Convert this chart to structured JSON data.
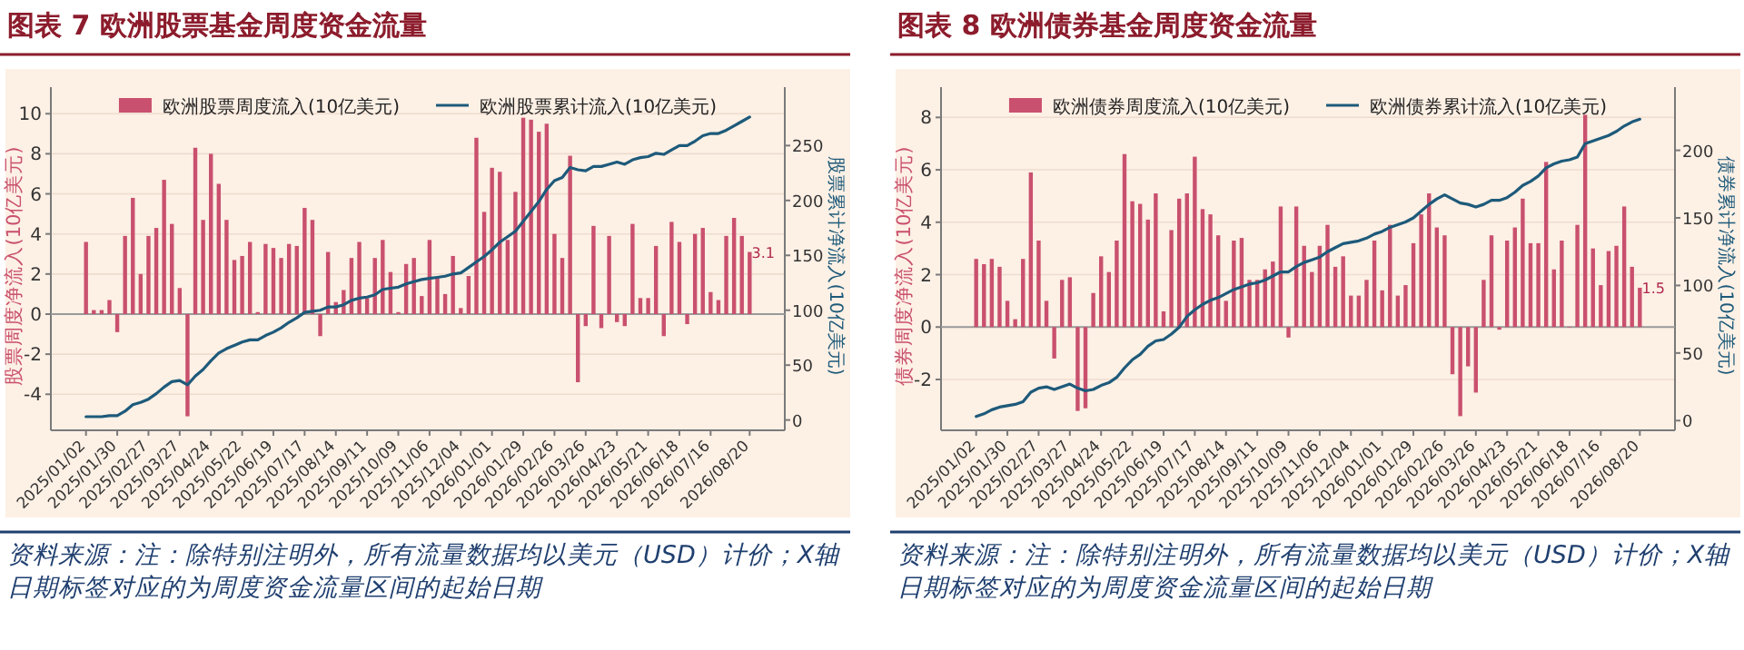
{
  "chart_data": [
    {
      "type": "bar",
      "title": "图表 7 欧洲股票基金周度资金流量",
      "ylabel": "股票周度净流入(10亿美元)",
      "y2label": "股票累计净流入(10亿美元)",
      "annotations": [
        "资料来源：注：除特别注明外，所有流量数据均以美元（USD）计价；X轴日期标签对应的为周度资金流量区间的起始日期"
      ],
      "categories": [
        "2025/01/02",
        null,
        null,
        null,
        "2025/01/30",
        null,
        null,
        null,
        "2025/02/27",
        null,
        null,
        null,
        "2025/03/27",
        null,
        null,
        null,
        "2025/04/24",
        null,
        null,
        null,
        "2025/05/22",
        null,
        null,
        null,
        "2025/06/19",
        null,
        null,
        null,
        "2025/07/17",
        null,
        null,
        null,
        "2025/08/14",
        null,
        null,
        null,
        "2025/09/11",
        null,
        null,
        null,
        "2025/10/09",
        null,
        null,
        null,
        "2025/11/06",
        null,
        null,
        null,
        "2025/12/04",
        null,
        null,
        null,
        "2026/01/01",
        null,
        null,
        null,
        "2026/01/29",
        null,
        null,
        null,
        "2026/02/26",
        null,
        null,
        null,
        "2026/03/26",
        null,
        null,
        null,
        "2026/04/23",
        null,
        null,
        null,
        "2026/05/21",
        null,
        null,
        null,
        "2026/06/18",
        null,
        null,
        null,
        "2026/07/16",
        null,
        null,
        null,
        null,
        "2026/08/20"
      ],
      "series": [
        {
          "type": "bar",
          "name": "欧洲股票周度流入(10亿美元)",
          "color": "#c9506e",
          "values": [
            3.6,
            0.2,
            0.2,
            0.7,
            -0.9,
            3.9,
            5.8,
            2.0,
            3.9,
            4.3,
            6.7,
            4.5,
            1.3,
            -5.1,
            8.3,
            4.7,
            8.0,
            6.5,
            4.7,
            2.7,
            2.9,
            3.6,
            0.1,
            3.5,
            3.3,
            2.8,
            3.5,
            3.4,
            5.3,
            4.7,
            -1.1,
            3.1,
            0.6,
            1.2,
            2.8,
            3.6,
            0.8,
            2.8,
            3.7,
            2.1,
            0.1,
            2.5,
            2.8,
            0.9,
            3.7,
            1.8,
            1.0,
            2.9,
            0.3,
            1.9,
            8.8,
            5.1,
            7.3,
            7.1,
            3.7,
            6.1,
            9.8,
            9.7,
            9.1,
            9.5,
            4.0,
            2.8,
            7.9,
            -3.4,
            -0.6,
            4.4,
            -0.7,
            3.9,
            -0.4,
            -0.6,
            4.5,
            0.8,
            0.8,
            3.4,
            -1.1,
            4.6,
            3.6,
            -0.5,
            4.0,
            4.3,
            1.1,
            0.7,
            3.9,
            4.8,
            3.9,
            3.1
          ],
          "value_labels": [
            null,
            null,
            null,
            null,
            null,
            null,
            null,
            null,
            null,
            null,
            null,
            null,
            null,
            null,
            null,
            null,
            null,
            null,
            null,
            null,
            null,
            null,
            null,
            null,
            null,
            null,
            null,
            null,
            null,
            null,
            null,
            null,
            null,
            null,
            null,
            null,
            null,
            null,
            null,
            null,
            null,
            null,
            null,
            null,
            null,
            null,
            null,
            null,
            null,
            null,
            null,
            null,
            null,
            null,
            null,
            null,
            null,
            null,
            null,
            null,
            null,
            null,
            null,
            null,
            null,
            null,
            null,
            null,
            null,
            null,
            null,
            null,
            null,
            null,
            null,
            null,
            null,
            null,
            null,
            null,
            null,
            null,
            null,
            null,
            null,
            "3.1"
          ]
        },
        {
          "type": "line",
          "axis": "y2",
          "name": "欧洲股票累计流入(10亿美元)",
          "color": "#1d5a7a",
          "values": [
            3,
            3,
            3,
            4,
            4,
            8,
            14,
            16,
            19,
            24,
            30,
            35,
            36,
            32,
            40,
            46,
            54,
            61,
            65,
            68,
            71,
            73,
            73,
            77,
            80,
            84,
            89,
            93,
            98,
            99,
            100,
            103,
            103,
            105,
            109,
            111,
            112,
            114,
            119,
            120,
            121,
            124,
            126,
            128,
            129,
            130,
            131,
            133,
            134,
            139,
            144,
            149,
            155,
            162,
            167,
            172,
            181,
            190,
            199,
            210,
            218,
            221,
            230,
            228,
            227,
            231,
            231,
            233,
            235,
            233,
            237,
            239,
            240,
            243,
            242,
            246,
            250,
            250,
            254,
            259,
            261,
            261,
            264,
            268,
            272,
            276
          ]
        }
      ],
      "ylim": [
        -5.8,
        10.6
      ],
      "yticks": [
        -4,
        -2,
        0,
        2,
        4,
        6,
        8,
        10
      ],
      "y2lim": [
        -9.4,
        290
      ],
      "y2ticks": [
        0,
        50,
        100,
        150,
        200,
        250
      ],
      "grid": "y",
      "legend": "top",
      "line_style": "solid"
    },
    {
      "type": "bar",
      "title": "图表 8 欧洲债券基金周度资金流量",
      "ylabel": "债券周度净流入(10亿美元)",
      "y2label": "债券累计净流入(10亿美元)",
      "annotations": [
        "资料来源：注：除特别注明外，所有流量数据均以美元（USD）计价；X轴日期标签对应的为周度资金流量区间的起始日期"
      ],
      "categories": [
        "2025/01/02",
        null,
        null,
        null,
        "2025/01/30",
        null,
        null,
        null,
        "2025/02/27",
        null,
        null,
        null,
        "2025/03/27",
        null,
        null,
        null,
        "2025/04/24",
        null,
        null,
        null,
        "2025/05/22",
        null,
        null,
        null,
        "2025/06/19",
        null,
        null,
        null,
        "2025/07/17",
        null,
        null,
        null,
        "2025/08/14",
        null,
        null,
        null,
        "2025/09/11",
        null,
        null,
        null,
        "2025/10/09",
        null,
        null,
        null,
        "2025/11/06",
        null,
        null,
        null,
        "2025/12/04",
        null,
        null,
        null,
        "2026/01/01",
        null,
        null,
        null,
        "2026/01/29",
        null,
        null,
        null,
        "2026/02/26",
        null,
        null,
        null,
        "2026/03/26",
        null,
        null,
        null,
        "2026/04/23",
        null,
        null,
        null,
        "2026/05/21",
        null,
        null,
        null,
        "2026/06/18",
        null,
        null,
        null,
        "2026/07/16",
        null,
        null,
        null,
        null,
        "2026/08/20"
      ],
      "series": [
        {
          "type": "bar",
          "name": "欧洲债券周度流入(10亿美元)",
          "color": "#c9506e",
          "values": [
            2.6,
            2.4,
            2.6,
            2.3,
            1.0,
            0.3,
            2.6,
            5.9,
            3.3,
            1.0,
            -1.2,
            1.8,
            1.9,
            -3.2,
            -3.1,
            1.3,
            2.7,
            2.1,
            3.3,
            6.6,
            4.8,
            4.7,
            4.1,
            5.1,
            0.6,
            3.7,
            4.9,
            5.1,
            6.5,
            4.5,
            4.3,
            3.5,
            1.0,
            3.3,
            3.4,
            1.8,
            1.8,
            2.2,
            2.5,
            4.6,
            -0.4,
            4.6,
            3.1,
            2.1,
            3.1,
            3.9,
            2.3,
            2.7,
            1.2,
            1.2,
            1.8,
            3.3,
            1.4,
            3.9,
            1.2,
            1.6,
            3.2,
            4.3,
            5.1,
            3.8,
            3.5,
            -1.8,
            -3.4,
            -1.5,
            -2.5,
            1.8,
            3.5,
            -0.1,
            3.3,
            3.8,
            4.9,
            3.2,
            3.2,
            6.3,
            2.2,
            3.3,
            0,
            3.9,
            8.1,
            3.0,
            1.6,
            2.9,
            3.1,
            4.6,
            2.3,
            1.5
          ],
          "value_labels": [
            null,
            null,
            null,
            null,
            null,
            null,
            null,
            null,
            null,
            null,
            null,
            null,
            null,
            null,
            null,
            null,
            null,
            null,
            null,
            null,
            null,
            null,
            null,
            null,
            null,
            null,
            null,
            null,
            null,
            null,
            null,
            null,
            null,
            null,
            null,
            null,
            null,
            null,
            null,
            null,
            null,
            null,
            null,
            null,
            null,
            null,
            null,
            null,
            null,
            null,
            null,
            null,
            null,
            null,
            null,
            null,
            null,
            null,
            null,
            null,
            null,
            null,
            null,
            null,
            null,
            null,
            null,
            null,
            null,
            null,
            null,
            null,
            null,
            null,
            null,
            null,
            null,
            null,
            null,
            null,
            null,
            null,
            null,
            null,
            null,
            "1.5"
          ]
        },
        {
          "type": "line",
          "axis": "y2",
          "name": "欧洲债券累计流入(10亿美元)",
          "color": "#1d5a7a",
          "values": [
            3,
            5,
            8,
            10,
            11,
            12,
            14,
            21,
            24,
            25,
            23,
            25,
            27,
            24,
            22,
            23,
            26,
            28,
            32,
            39,
            45,
            49,
            55,
            59,
            60,
            64,
            69,
            77,
            82,
            86,
            89,
            91,
            94,
            97,
            99,
            101,
            102,
            104,
            107,
            110,
            110,
            114,
            117,
            119,
            121,
            125,
            128,
            131,
            132,
            133,
            135,
            138,
            140,
            143,
            145,
            147,
            150,
            155,
            160,
            164,
            167,
            164,
            161,
            160,
            158,
            160,
            163,
            163,
            165,
            169,
            174,
            177,
            181,
            187,
            190,
            192,
            193,
            195,
            205,
            207,
            209,
            211,
            214,
            218,
            221,
            223
          ]
        }
      ],
      "ylim": [
        -3.94,
        8.6
      ],
      "yticks": [
        -2,
        0,
        2,
        4,
        6,
        8
      ],
      "y2lim": [
        -7.2,
        236
      ],
      "y2ticks": [
        0,
        50,
        100,
        150,
        200
      ],
      "grid": "y",
      "legend": "top",
      "line_style": "solid"
    }
  ]
}
